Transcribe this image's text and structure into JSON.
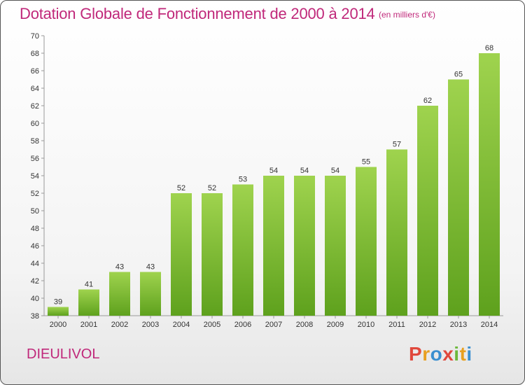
{
  "chart_data": {
    "type": "bar",
    "title": "Dotation Globale de Fonctionnement de 2000 à 2014",
    "subtitle": "(en milliers d'€)",
    "categories": [
      "2000",
      "2001",
      "2002",
      "2003",
      "2004",
      "2005",
      "2006",
      "2007",
      "2008",
      "2009",
      "2010",
      "2011",
      "2012",
      "2013",
      "2014"
    ],
    "values": [
      39,
      41,
      43,
      43,
      52,
      52,
      53,
      54,
      54,
      54,
      55,
      57,
      62,
      65,
      68
    ],
    "ylim": [
      38,
      70
    ],
    "yticks": [
      38,
      40,
      42,
      44,
      46,
      48,
      50,
      52,
      54,
      56,
      58,
      60,
      62,
      64,
      66,
      68,
      70
    ],
    "xlabel": "",
    "ylabel": "",
    "grid": false,
    "bar_color": "#7cbc2f"
  },
  "commune": "DIEULIVOL",
  "logo": {
    "letters": [
      "P",
      "r",
      "o",
      "x",
      "i",
      "t",
      "i"
    ],
    "colors": [
      "#e0483c",
      "#e8a020",
      "#3a8fd0",
      "#e0483c",
      "#6cb83a",
      "#e8a020",
      "#3a8fd0"
    ]
  }
}
